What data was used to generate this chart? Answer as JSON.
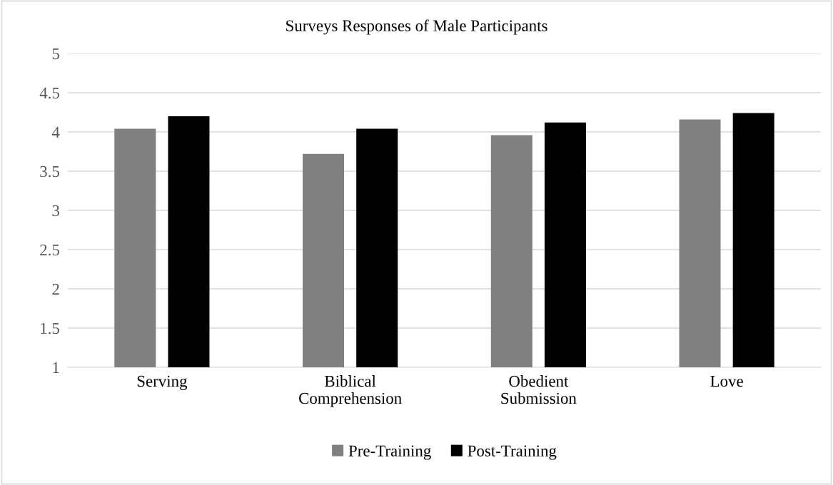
{
  "chart_data": {
    "type": "bar",
    "title": "Surveys Responses of Male Participants",
    "categories": [
      "Serving",
      "Biblical\nComprehension",
      "Obedient\nSubmission",
      "Love"
    ],
    "series": [
      {
        "name": "Pre-Training",
        "color": "#808080",
        "values": [
          4.04,
          3.72,
          3.96,
          4.16
        ]
      },
      {
        "name": "Post-Training",
        "color": "#000000",
        "values": [
          4.2,
          4.04,
          4.12,
          4.24
        ]
      }
    ],
    "ylim": [
      1,
      5
    ],
    "yticks": [
      1,
      1.5,
      2,
      2.5,
      3,
      3.5,
      4,
      4.5,
      5
    ],
    "grid": "y",
    "legend": "bottom"
  }
}
